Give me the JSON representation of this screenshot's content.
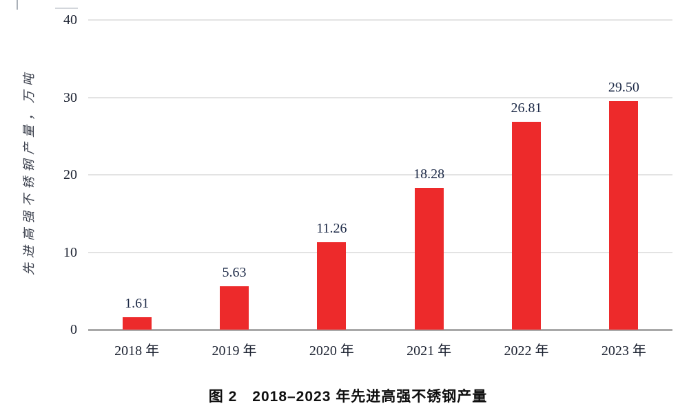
{
  "chart_data": {
    "type": "bar",
    "title": "",
    "caption": "图 2　2018–2023 年先进高强不锈钢产量",
    "categories": [
      "2018 年",
      "2019 年",
      "2020 年",
      "2021 年",
      "2022 年",
      "2023 年"
    ],
    "values": [
      1.61,
      5.63,
      11.26,
      18.28,
      26.81,
      29.5
    ],
    "value_labels": [
      "1.61",
      "5.63",
      "11.26",
      "18.28",
      "26.81",
      "29.50"
    ],
    "ylabel": "先进高强不锈钢产量，万吨",
    "xlabel": "",
    "ylim": [
      0,
      40
    ],
    "yticks": [
      0,
      10,
      20,
      30,
      40
    ],
    "grid": "horizontal",
    "legend": "none",
    "bar_color": "#ed2a2b",
    "text_color": "#1d2332",
    "value_label_color": "#1d2a47",
    "gridline_color": "#e3e3e3",
    "axisline_color": "#a8a8a8"
  }
}
